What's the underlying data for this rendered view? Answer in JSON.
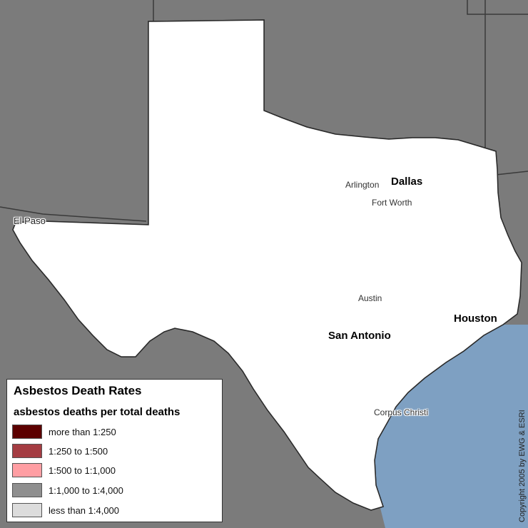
{
  "colors": {
    "background": "#7b7b7b",
    "ocean": "#7ea0c2",
    "state_fill": "#ffffff",
    "boundary": "#3a3a3a",
    "more_than_250": "#5c0000",
    "c250_500": "#a43c42",
    "c500_1000": "#ff9ea3",
    "c1000_4000": "#8f8f8f",
    "less_4000": "#dcdcdc",
    "no_data": "#ffffff"
  },
  "legend": {
    "title": "Asbestos Death Rates",
    "subtitle": "asbestos deaths per total deaths",
    "items": [
      {
        "label": "more than 1:250",
        "color": "#5c0000"
      },
      {
        "label": "1:250 to 1:500",
        "color": "#a43c42"
      },
      {
        "label": "1:500 to 1:1,000",
        "color": "#ff9ea3"
      },
      {
        "label": "1:1,000 to 1:4,000",
        "color": "#8f8f8f"
      },
      {
        "label": "less than 1:4,000",
        "color": "#dcdcdc"
      }
    ]
  },
  "cities": {
    "el_paso": "El Paso",
    "dallas": "Dallas",
    "arlington": "Arlington",
    "fort_worth": "Fort Worth",
    "austin": "Austin",
    "san_antonio": "San Antonio",
    "houston": "Houston",
    "corpus_christi": "Corpus Christi"
  },
  "copyright": "Copyright 2005 by EWG & ESRI"
}
